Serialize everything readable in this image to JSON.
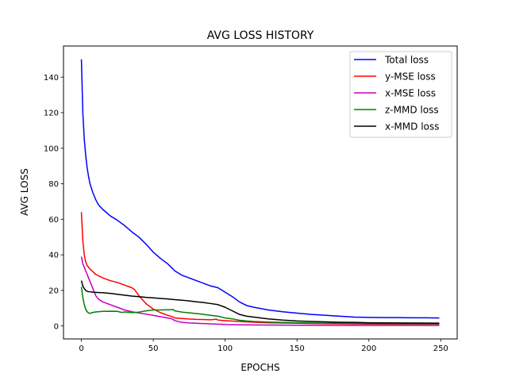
{
  "chart_data": {
    "type": "line",
    "title": "AVG LOSS HISTORY",
    "xlabel": "EPOCHS",
    "ylabel": "AVG LOSS",
    "xlim": [
      -12.45,
      261.45
    ],
    "ylim": [
      -7.3,
      157.5
    ],
    "xticks": [
      0,
      50,
      100,
      150,
      200,
      250
    ],
    "yticks": [
      0,
      20,
      40,
      60,
      80,
      100,
      120,
      140
    ],
    "grid": false,
    "legend_position": "top-right",
    "series": [
      {
        "name": "Total loss",
        "color": "#0000ff",
        "points": [
          [
            0,
            150
          ],
          [
            1,
            120
          ],
          [
            2,
            105
          ],
          [
            3,
            96
          ],
          [
            4,
            89
          ],
          [
            5,
            84
          ],
          [
            6,
            80
          ],
          [
            8,
            75
          ],
          [
            10,
            71
          ],
          [
            12,
            68
          ],
          [
            15,
            65.5
          ],
          [
            20,
            62
          ],
          [
            25,
            59.5
          ],
          [
            30,
            56.5
          ],
          [
            35,
            53
          ],
          [
            40,
            50
          ],
          [
            45,
            46
          ],
          [
            50,
            41.5
          ],
          [
            55,
            38
          ],
          [
            60,
            35
          ],
          [
            65,
            31
          ],
          [
            68,
            29.5
          ],
          [
            70,
            28.5
          ],
          [
            75,
            27
          ],
          [
            80,
            25.5
          ],
          [
            85,
            24
          ],
          [
            90,
            22.5
          ],
          [
            95,
            21.5
          ],
          [
            100,
            19
          ],
          [
            105,
            16.5
          ],
          [
            110,
            13.5
          ],
          [
            115,
            11.5
          ],
          [
            120,
            10.5
          ],
          [
            130,
            9
          ],
          [
            140,
            8
          ],
          [
            150,
            7.2
          ],
          [
            160,
            6.5
          ],
          [
            170,
            6
          ],
          [
            180,
            5.5
          ],
          [
            190,
            5
          ],
          [
            200,
            4.8
          ],
          [
            210,
            4.7
          ],
          [
            220,
            4.7
          ],
          [
            230,
            4.6
          ],
          [
            240,
            4.6
          ],
          [
            249,
            4.5
          ]
        ]
      },
      {
        "name": "y-MSE loss",
        "color": "#ff0000",
        "points": [
          [
            0,
            64
          ],
          [
            1,
            48
          ],
          [
            2,
            40
          ],
          [
            3,
            36
          ],
          [
            4,
            34
          ],
          [
            5,
            33
          ],
          [
            6,
            32
          ],
          [
            8,
            30.5
          ],
          [
            10,
            29
          ],
          [
            15,
            27
          ],
          [
            20,
            25.5
          ],
          [
            25,
            24.5
          ],
          [
            30,
            23
          ],
          [
            35,
            21.5
          ],
          [
            37,
            20.5
          ],
          [
            40,
            17
          ],
          [
            45,
            12.5
          ],
          [
            50,
            9.5
          ],
          [
            55,
            7.5
          ],
          [
            60,
            6
          ],
          [
            64,
            5
          ],
          [
            65,
            4.5
          ],
          [
            70,
            4.2
          ],
          [
            75,
            3.9
          ],
          [
            80,
            3.7
          ],
          [
            90,
            3.5
          ],
          [
            94,
            3.8
          ],
          [
            95,
            3.3
          ],
          [
            100,
            3
          ],
          [
            110,
            2.5
          ],
          [
            120,
            2.1
          ],
          [
            130,
            1.8
          ],
          [
            150,
            1.5
          ],
          [
            170,
            1.3
          ],
          [
            200,
            1.1
          ],
          [
            230,
            1
          ],
          [
            249,
            1
          ]
        ]
      },
      {
        "name": "x-MSE loss",
        "color": "#c000c0",
        "points": [
          [
            0,
            39
          ],
          [
            1,
            35
          ],
          [
            2,
            33
          ],
          [
            3,
            31
          ],
          [
            4,
            29
          ],
          [
            5,
            27
          ],
          [
            6,
            25
          ],
          [
            8,
            21
          ],
          [
            10,
            17
          ],
          [
            12,
            15
          ],
          [
            15,
            13.5
          ],
          [
            20,
            12
          ],
          [
            25,
            10.5
          ],
          [
            30,
            9
          ],
          [
            35,
            8
          ],
          [
            40,
            7.3
          ],
          [
            50,
            6
          ],
          [
            55,
            5.2
          ],
          [
            60,
            4.5
          ],
          [
            63,
            4
          ],
          [
            65,
            3
          ],
          [
            70,
            2
          ],
          [
            75,
            1.7
          ],
          [
            80,
            1.5
          ],
          [
            90,
            1.2
          ],
          [
            95,
            1
          ],
          [
            100,
            0.8
          ],
          [
            110,
            0.6
          ],
          [
            130,
            0.5
          ],
          [
            150,
            0.4
          ],
          [
            200,
            0.3
          ],
          [
            249,
            0.3
          ]
        ]
      },
      {
        "name": "z-MMD loss",
        "color": "#008000",
        "points": [
          [
            0,
            22
          ],
          [
            1,
            16
          ],
          [
            2,
            12
          ],
          [
            3,
            9.5
          ],
          [
            4,
            8
          ],
          [
            5,
            7.3
          ],
          [
            6,
            7.1
          ],
          [
            8,
            7.6
          ],
          [
            10,
            7.9
          ],
          [
            15,
            8.2
          ],
          [
            20,
            8.3
          ],
          [
            25,
            8.2
          ],
          [
            28,
            7.6
          ],
          [
            30,
            7.9
          ],
          [
            35,
            7.5
          ],
          [
            40,
            7.8
          ],
          [
            45,
            8.5
          ],
          [
            50,
            9
          ],
          [
            55,
            9
          ],
          [
            60,
            9.1
          ],
          [
            64,
            9.2
          ],
          [
            65,
            8.5
          ],
          [
            70,
            7.8
          ],
          [
            75,
            7.4
          ],
          [
            80,
            7
          ],
          [
            85,
            6.5
          ],
          [
            90,
            6
          ],
          [
            95,
            5.5
          ],
          [
            100,
            4.5
          ],
          [
            105,
            4
          ],
          [
            110,
            3.2
          ],
          [
            115,
            2.8
          ],
          [
            120,
            2.5
          ],
          [
            130,
            2.2
          ],
          [
            150,
            1.8
          ],
          [
            170,
            1.6
          ],
          [
            200,
            1.4
          ],
          [
            230,
            1.3
          ],
          [
            249,
            1.3
          ]
        ]
      },
      {
        "name": "x-MMD loss",
        "color": "#000000",
        "points": [
          [
            0,
            25.5
          ],
          [
            1,
            22.5
          ],
          [
            2,
            21
          ],
          [
            3,
            20
          ],
          [
            4,
            19.5
          ],
          [
            5,
            19.3
          ],
          [
            8,
            19
          ],
          [
            10,
            18.9
          ],
          [
            15,
            18.7
          ],
          [
            20,
            18.3
          ],
          [
            25,
            17.8
          ],
          [
            30,
            17.3
          ],
          [
            35,
            16.8
          ],
          [
            40,
            16.5
          ],
          [
            45,
            16.1
          ],
          [
            50,
            15.8
          ],
          [
            55,
            15.5
          ],
          [
            60,
            15.2
          ],
          [
            65,
            14.8
          ],
          [
            70,
            14.5
          ],
          [
            75,
            14.1
          ],
          [
            80,
            13.6
          ],
          [
            85,
            13.2
          ],
          [
            90,
            12.6
          ],
          [
            95,
            12
          ],
          [
            100,
            10.5
          ],
          [
            105,
            8.5
          ],
          [
            110,
            6.5
          ],
          [
            115,
            5.5
          ],
          [
            120,
            5
          ],
          [
            130,
            4
          ],
          [
            140,
            3.3
          ],
          [
            150,
            2.8
          ],
          [
            160,
            2.5
          ],
          [
            170,
            2.3
          ],
          [
            180,
            2.1
          ],
          [
            190,
            2
          ],
          [
            200,
            1.8
          ],
          [
            220,
            1.7
          ],
          [
            249,
            1.6
          ]
        ]
      }
    ]
  }
}
